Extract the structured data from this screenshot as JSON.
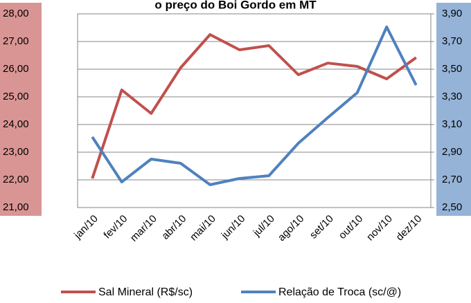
{
  "chart_data": {
    "type": "line",
    "title": "o preço do Boi Gordo em MT",
    "categories": [
      "jan/10",
      "fev/10",
      "mar/10",
      "abr/10",
      "mai/10",
      "jun/10",
      "jul/10",
      "ago/10",
      "set/10",
      "out/10",
      "nov/10",
      "dez/10"
    ],
    "series": [
      {
        "name": "Sal Mineral (R$/sc)",
        "color": "#c0504d",
        "values": [
          22.05,
          25.25,
          24.4,
          26.05,
          27.25,
          26.7,
          26.85,
          25.8,
          26.22,
          26.1,
          25.65,
          26.42
        ]
      },
      {
        "name": "Relação de Troca (sc/@)",
        "color": "#4f81bd",
        "axis": "y2",
        "values": [
          3.01,
          2.685,
          2.85,
          2.82,
          2.665,
          2.71,
          2.73,
          2.965,
          3.15,
          3.33,
          3.805,
          3.385
        ]
      }
    ],
    "ylim": [
      21,
      28
    ],
    "yticks": [
      {
        "value": 21,
        "label": "21,00"
      },
      {
        "value": 22,
        "label": "22,00"
      },
      {
        "value": 23,
        "label": "23,00"
      },
      {
        "value": 24,
        "label": "24,00"
      },
      {
        "value": 25,
        "label": "25,00"
      },
      {
        "value": 26,
        "label": "26,00"
      },
      {
        "value": 27,
        "label": "27,00"
      },
      {
        "value": 28,
        "label": "28,00"
      }
    ],
    "y2lim": [
      2.5,
      3.9
    ],
    "y2ticks": [
      {
        "value": 2.5,
        "label": "2,50"
      },
      {
        "value": 2.7,
        "label": "2,70"
      },
      {
        "value": 2.9,
        "label": "2,90"
      },
      {
        "value": 3.1,
        "label": "3,10"
      },
      {
        "value": 3.3,
        "label": "3,30"
      },
      {
        "value": 3.5,
        "label": "3,50"
      },
      {
        "value": 3.7,
        "label": "3,70"
      },
      {
        "value": 3.9,
        "label": "3,90"
      }
    ],
    "grid": true,
    "legend": "bottom"
  }
}
